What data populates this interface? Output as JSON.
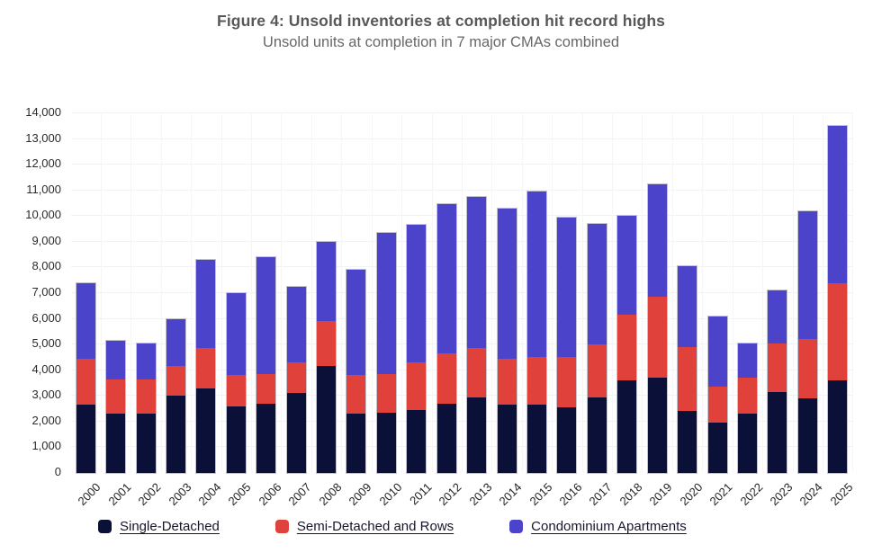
{
  "chart_data": {
    "type": "bar",
    "stacked": true,
    "title": "Figure 4: Unsold inventories at completion hit record highs",
    "subtitle": "Unsold units at completion in 7 major CMAs combined",
    "xlabel": "",
    "ylabel": "",
    "ylim": [
      0,
      14000
    ],
    "yticks": [
      0,
      1000,
      2000,
      3000,
      4000,
      5000,
      6000,
      7000,
      8000,
      9000,
      10000,
      11000,
      12000,
      13000,
      14000
    ],
    "grid": true,
    "legend_position": "bottom",
    "categories": [
      "2000",
      "2001",
      "2002",
      "2003",
      "2004",
      "2005",
      "2006",
      "2007",
      "2008",
      "2009",
      "2010",
      "2011",
      "2012",
      "2013",
      "2014",
      "2015",
      "2016",
      "2017",
      "2018",
      "2019",
      "2020",
      "2021",
      "2022",
      "2023",
      "2024",
      "2025"
    ],
    "series": [
      {
        "name": "Single-Detached",
        "color": "#0a1038",
        "values": [
          2650,
          2300,
          2300,
          3000,
          3300,
          2600,
          2700,
          3100,
          4150,
          2300,
          2350,
          2450,
          2700,
          2950,
          2650,
          2650,
          2550,
          2950,
          3600,
          3700,
          2400,
          1950,
          2300,
          3150,
          2900,
          3600
        ]
      },
      {
        "name": "Semi-Detached and Rows",
        "color": "#e0413a",
        "values": [
          1800,
          1350,
          1350,
          1150,
          1550,
          1200,
          1150,
          1200,
          1750,
          1500,
          1500,
          1850,
          1950,
          1900,
          1800,
          1850,
          1950,
          2050,
          2550,
          3150,
          2500,
          1400,
          1400,
          1900,
          2300,
          3800
        ]
      },
      {
        "name": "Condominium Apartments",
        "color": "#4b44cb",
        "values": [
          2950,
          1500,
          1400,
          1850,
          3450,
          3200,
          4550,
          2950,
          3100,
          4100,
          5500,
          5350,
          5800,
          5900,
          5850,
          6450,
          5450,
          4700,
          3850,
          4400,
          3150,
          2750,
          1350,
          2050,
          5000,
          6100
        ]
      }
    ]
  }
}
